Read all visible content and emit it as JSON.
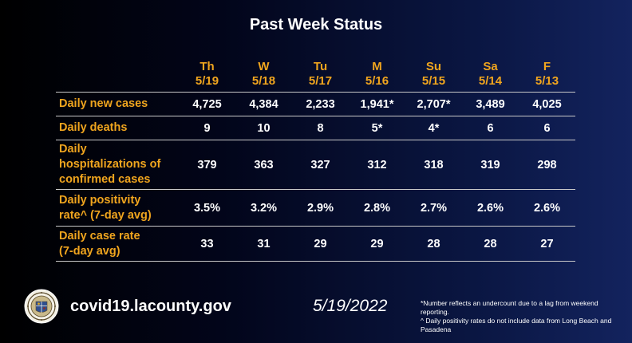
{
  "title": "Past Week Status",
  "columns": [
    {
      "day": "Th",
      "date": "5/19"
    },
    {
      "day": "W",
      "date": "5/18"
    },
    {
      "day": "Tu",
      "date": "5/17"
    },
    {
      "day": "M",
      "date": "5/16"
    },
    {
      "day": "Su",
      "date": "5/15"
    },
    {
      "day": "Sa",
      "date": "5/14"
    },
    {
      "day": "F",
      "date": "5/13"
    }
  ],
  "rows": [
    {
      "label_lines": [
        "Daily new cases"
      ],
      "values": [
        "4,725",
        "4,384",
        "2,233",
        "1,941*",
        "2,707*",
        "3,489",
        "4,025"
      ]
    },
    {
      "label_lines": [
        "Daily deaths"
      ],
      "values": [
        "9",
        "10",
        "8",
        "5*",
        "4*",
        "6",
        "6"
      ]
    },
    {
      "label_lines": [
        "Daily",
        "hospitalizations of",
        "confirmed cases"
      ],
      "values": [
        "379",
        "363",
        "327",
        "312",
        "318",
        "319",
        "298"
      ]
    },
    {
      "label_lines": [
        "Daily positivity",
        "rate^ (7-day avg)"
      ],
      "values": [
        "3.5%",
        "3.2%",
        "2.9%",
        "2.8%",
        "2.7%",
        "2.6%",
        "2.6%"
      ]
    },
    {
      "label_lines": [
        "Daily case rate",
        "(7-day avg)"
      ],
      "values": [
        "33",
        "31",
        "29",
        "29",
        "28",
        "28",
        "27"
      ]
    }
  ],
  "footer": {
    "website": "covid19.lacounty.gov",
    "date": "5/19/2022",
    "footnote_1": "*Number reflects an undercount due to a lag from weekend reporting.",
    "footnote_2": "^ Daily positivity rates do not include data from Long Beach and Pasadena"
  },
  "colors": {
    "accent": "#f0a51e",
    "text": "#ffffff",
    "rule": "#c8c8c8"
  },
  "icons": {
    "seal": "county-seal-icon"
  }
}
